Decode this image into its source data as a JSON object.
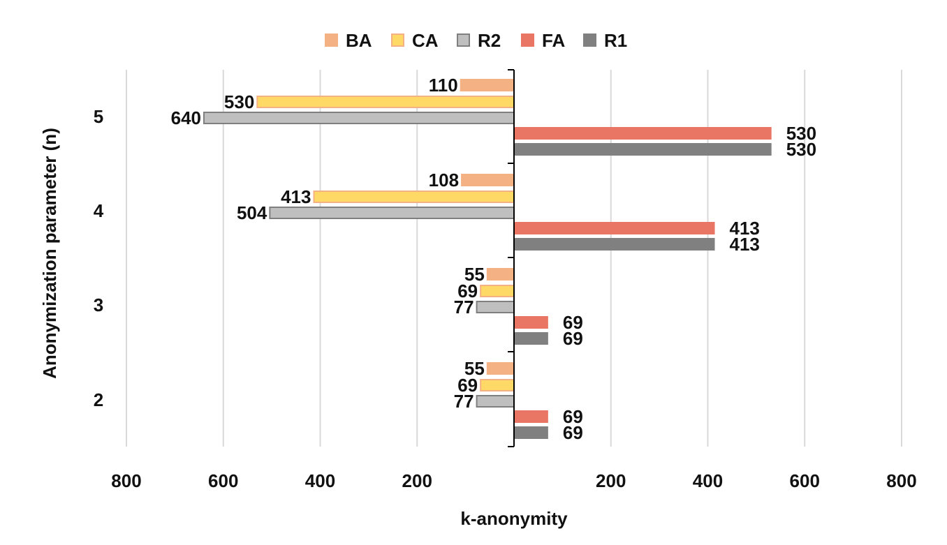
{
  "chart_data": {
    "type": "bar",
    "orientation": "horizontal-butterfly",
    "categories": [
      "5",
      "4",
      "3",
      "2"
    ],
    "series": [
      {
        "name": "BA",
        "side": "left",
        "values": [
          110,
          108,
          55,
          55
        ],
        "color": "#F4B183",
        "stroke": "#F4B183"
      },
      {
        "name": "CA",
        "side": "left",
        "values": [
          530,
          413,
          69,
          69
        ],
        "color": "#FFD966",
        "stroke": "#F4B183"
      },
      {
        "name": "R2",
        "side": "left",
        "values": [
          640,
          504,
          77,
          77
        ],
        "color": "#BFBFBF",
        "stroke": "#7F7F7F"
      },
      {
        "name": "FA",
        "side": "right",
        "values": [
          530,
          413,
          69,
          69
        ],
        "color": "#E97665",
        "stroke": "#E97665"
      },
      {
        "name": "R1",
        "side": "right",
        "values": [
          530,
          413,
          69,
          69
        ],
        "color": "#808080",
        "stroke": "#808080"
      }
    ],
    "xlabel": "k-anonymity",
    "ylabel": "Anonymization parameter (n)",
    "left_ticks": [
      "800",
      "600",
      "400",
      "200"
    ],
    "right_ticks": [
      "200",
      "400",
      "600",
      "800"
    ],
    "xlim": [
      0,
      800
    ],
    "legend_position": "top",
    "grid": true
  }
}
